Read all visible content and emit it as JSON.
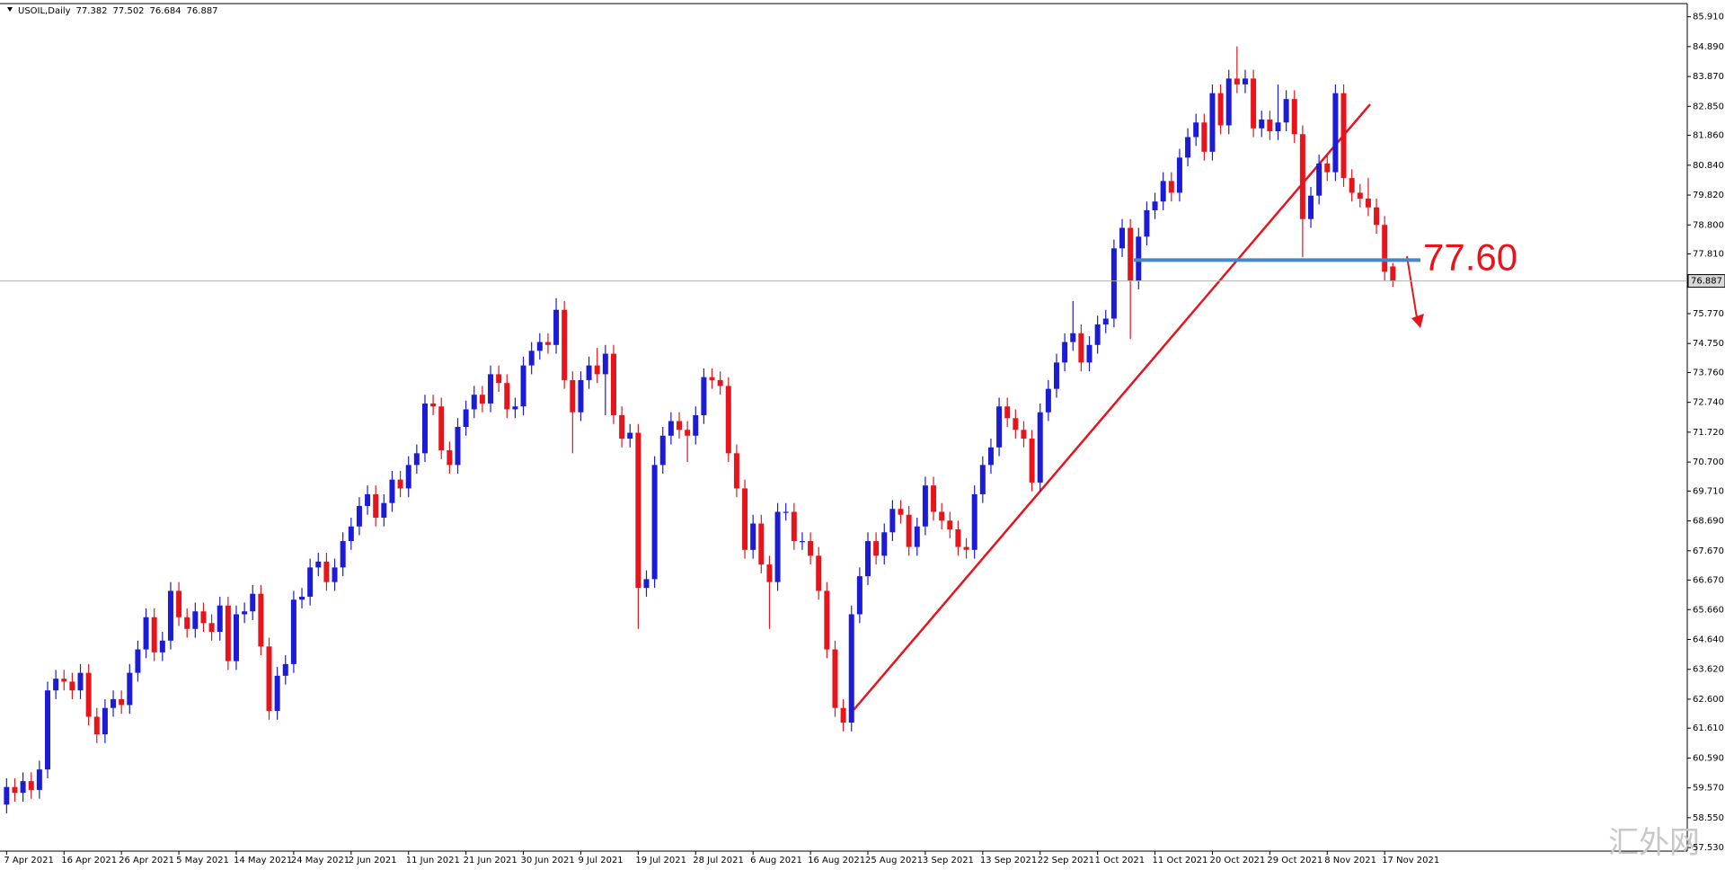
{
  "chart_data": {
    "type": "candlestick",
    "title": "USOIL,Daily",
    "header_values": [
      "77.382",
      "77.502",
      "76.684",
      "76.887"
    ],
    "up_color": "#1c1cd6",
    "down_color": "#e8141c",
    "categories": [
      "7 Apr 2021",
      null,
      null,
      null,
      null,
      null,
      null,
      "16 Apr 2021",
      null,
      null,
      null,
      null,
      null,
      null,
      "26 Apr 2021",
      null,
      null,
      null,
      null,
      null,
      null,
      "5 May 2021",
      null,
      null,
      null,
      null,
      null,
      null,
      "14 May 2021",
      null,
      null,
      null,
      null,
      null,
      null,
      "24 May 2021",
      null,
      null,
      null,
      null,
      null,
      null,
      "2 Jun 2021",
      null,
      null,
      null,
      null,
      null,
      null,
      "11 Jun 2021",
      null,
      null,
      null,
      null,
      null,
      null,
      "21 Jun 2021",
      null,
      null,
      null,
      null,
      null,
      null,
      "30 Jun 2021",
      null,
      null,
      null,
      null,
      null,
      null,
      "9 Jul 2021",
      null,
      null,
      null,
      null,
      null,
      null,
      "19 Jul 2021",
      null,
      null,
      null,
      null,
      null,
      null,
      "28 Jul 2021",
      null,
      null,
      null,
      null,
      null,
      null,
      "6 Aug 2021",
      null,
      null,
      null,
      null,
      null,
      null,
      "16 Aug 2021",
      null,
      null,
      null,
      null,
      null,
      null,
      "25 Aug 2021",
      null,
      null,
      null,
      null,
      null,
      null,
      "3 Sep 2021",
      null,
      null,
      null,
      null,
      null,
      null,
      "13 Sep 2021",
      null,
      null,
      null,
      null,
      null,
      null,
      "22 Sep 2021",
      null,
      null,
      null,
      null,
      null,
      null,
      "1 Oct 2021",
      null,
      null,
      null,
      null,
      null,
      null,
      "11 Oct 2021",
      null,
      null,
      null,
      null,
      null,
      null,
      "20 Oct 2021",
      null,
      null,
      null,
      null,
      null,
      null,
      "29 Oct 2021",
      null,
      null,
      null,
      null,
      null,
      null,
      "8 Nov 2021",
      null,
      null,
      null,
      null,
      null,
      null,
      "17 Nov 2021",
      null
    ],
    "open": [
      59.0,
      59.6,
      59.4,
      59.8,
      59.5,
      60.2,
      62.9,
      63.3,
      63.2,
      62.9,
      63.5,
      62.0,
      61.4,
      62.3,
      62.6,
      62.4,
      63.5,
      64.3,
      65.4,
      64.2,
      64.6,
      66.3,
      65.4,
      65.0,
      65.6,
      65.2,
      64.9,
      65.8,
      63.9,
      65.5,
      65.6,
      66.2,
      64.4,
      62.2,
      63.4,
      63.8,
      66.0,
      66.1,
      67.1,
      67.3,
      66.6,
      67.1,
      68.0,
      68.5,
      69.2,
      69.6,
      68.8,
      69.3,
      70.1,
      69.8,
      70.6,
      71.0,
      72.7,
      72.6,
      71.1,
      70.6,
      71.9,
      72.5,
      73.0,
      72.7,
      73.7,
      73.4,
      72.5,
      72.6,
      74.0,
      74.5,
      74.8,
      74.7,
      75.9,
      73.5,
      72.4,
      73.5,
      74.0,
      73.7,
      74.4,
      72.3,
      71.5,
      71.7,
      66.4,
      66.7,
      70.6,
      71.6,
      72.1,
      71.8,
      71.6,
      72.3,
      73.6,
      73.5,
      73.3,
      71.0,
      69.8,
      67.7,
      68.6,
      67.2,
      66.6,
      69.0,
      69.0,
      68.0,
      68.0,
      67.5,
      66.3,
      64.3,
      62.3,
      61.8,
      65.5,
      66.8,
      68.0,
      67.5,
      68.3,
      69.1,
      68.9,
      67.8,
      68.5,
      69.9,
      69.0,
      68.7,
      68.4,
      67.8,
      67.7,
      69.6,
      70.6,
      71.2,
      72.6,
      72.2,
      71.8,
      71.5,
      70.0,
      72.4,
      73.2,
      74.1,
      74.8,
      75.1,
      74.1,
      74.7,
      75.4,
      75.6,
      78.0,
      78.7,
      76.9,
      78.4,
      79.3,
      79.6,
      80.3,
      79.9,
      81.1,
      81.8,
      82.3,
      81.3,
      83.3,
      82.2,
      83.8,
      83.6,
      83.8,
      82.1,
      82.4,
      82.0,
      82.3,
      83.1,
      81.9,
      79.0,
      79.8,
      80.9,
      80.6,
      83.3,
      80.4,
      79.9,
      79.7,
      79.4,
      78.8,
      77.382
    ],
    "high": [
      59.9,
      59.9,
      60.1,
      60.1,
      60.5,
      63.2,
      63.6,
      63.6,
      63.5,
      63.8,
      63.8,
      62.3,
      62.6,
      62.9,
      62.9,
      63.8,
      64.6,
      65.7,
      65.7,
      64.9,
      66.6,
      66.6,
      65.7,
      65.9,
      65.9,
      65.5,
      66.1,
      66.1,
      65.8,
      65.9,
      66.5,
      66.5,
      64.7,
      63.7,
      64.1,
      66.3,
      66.4,
      67.4,
      67.6,
      67.6,
      67.4,
      68.3,
      68.8,
      69.5,
      69.9,
      69.9,
      69.6,
      70.4,
      70.4,
      70.9,
      71.3,
      73.0,
      73.0,
      72.9,
      71.4,
      72.2,
      72.8,
      73.3,
      73.3,
      74.0,
      74.0,
      73.7,
      72.9,
      74.3,
      74.8,
      75.1,
      75.1,
      76.3,
      76.2,
      73.8,
      73.8,
      74.3,
      74.6,
      74.7,
      74.7,
      72.6,
      72.0,
      72.0,
      67.0,
      70.9,
      71.9,
      72.4,
      72.4,
      72.1,
      72.6,
      73.9,
      73.9,
      73.8,
      73.6,
      71.3,
      70.1,
      68.9,
      68.9,
      67.5,
      69.3,
      69.3,
      69.3,
      68.3,
      68.3,
      67.8,
      66.6,
      64.6,
      62.6,
      65.8,
      67.1,
      68.3,
      68.3,
      68.6,
      69.4,
      69.4,
      69.2,
      68.8,
      70.2,
      70.2,
      69.3,
      69.0,
      68.7,
      68.1,
      69.9,
      70.9,
      71.5,
      72.9,
      72.9,
      72.5,
      72.1,
      71.8,
      72.7,
      73.5,
      74.4,
      75.1,
      76.2,
      75.4,
      75.0,
      75.7,
      75.9,
      78.3,
      79.0,
      79.0,
      78.7,
      79.6,
      79.9,
      80.6,
      80.6,
      81.4,
      82.1,
      82.6,
      82.6,
      83.6,
      83.6,
      84.1,
      84.9,
      84.1,
      84.1,
      82.7,
      82.7,
      83.6,
      83.4,
      83.4,
      82.2,
      80.1,
      81.2,
      81.2,
      83.6,
      83.6,
      80.7,
      80.2,
      80.4,
      79.7,
      79.1,
      77.502
    ],
    "low": [
      58.7,
      59.1,
      59.1,
      59.2,
      59.2,
      59.9,
      62.6,
      62.9,
      62.6,
      62.6,
      61.7,
      61.1,
      61.1,
      62.0,
      62.1,
      62.1,
      63.2,
      64.0,
      63.9,
      63.9,
      64.3,
      65.1,
      64.7,
      64.7,
      64.9,
      64.6,
      64.6,
      63.6,
      63.6,
      65.2,
      65.3,
      64.1,
      61.9,
      61.9,
      63.1,
      63.5,
      65.7,
      65.8,
      66.8,
      66.3,
      66.3,
      66.8,
      67.7,
      68.2,
      68.9,
      68.5,
      68.5,
      69.0,
      69.5,
      69.5,
      70.3,
      70.7,
      72.3,
      70.8,
      70.3,
      70.3,
      71.6,
      72.2,
      72.4,
      72.4,
      73.1,
      72.2,
      72.2,
      72.3,
      73.7,
      74.2,
      74.4,
      74.4,
      73.2,
      71.0,
      72.1,
      73.2,
      73.4,
      72.3,
      72.0,
      71.2,
      71.2,
      65.0,
      66.1,
      66.4,
      70.3,
      71.3,
      71.5,
      70.7,
      71.3,
      72.0,
      73.2,
      73.0,
      70.7,
      69.5,
      67.4,
      67.4,
      66.9,
      65.0,
      66.3,
      68.7,
      67.7,
      67.7,
      67.2,
      66.0,
      64.0,
      62.0,
      61.5,
      61.5,
      65.2,
      66.5,
      67.2,
      67.2,
      68.0,
      68.6,
      67.5,
      67.5,
      68.2,
      68.7,
      68.4,
      68.1,
      67.5,
      67.4,
      67.4,
      69.3,
      70.3,
      70.9,
      71.9,
      71.5,
      71.2,
      69.7,
      69.7,
      72.1,
      72.9,
      73.8,
      74.5,
      73.8,
      73.8,
      74.4,
      75.1,
      75.3,
      77.7,
      74.9,
      76.6,
      78.1,
      79.0,
      79.3,
      79.6,
      79.6,
      80.8,
      81.5,
      81.0,
      81.0,
      81.9,
      81.9,
      83.3,
      83.3,
      81.8,
      81.8,
      81.7,
      81.7,
      82.0,
      81.6,
      77.7,
      78.7,
      79.5,
      80.3,
      80.3,
      80.1,
      79.6,
      79.4,
      79.1,
      78.5,
      76.9,
      76.684
    ],
    "close": [
      59.6,
      59.4,
      59.8,
      59.5,
      60.2,
      62.9,
      63.3,
      63.2,
      62.9,
      63.5,
      62.0,
      61.4,
      62.3,
      62.6,
      62.4,
      63.5,
      64.3,
      65.4,
      64.2,
      64.6,
      66.3,
      65.4,
      65.0,
      65.6,
      65.2,
      64.9,
      65.8,
      63.9,
      65.5,
      65.6,
      66.2,
      64.4,
      62.2,
      63.4,
      63.8,
      66.0,
      66.1,
      67.1,
      67.3,
      66.6,
      67.1,
      68.0,
      68.5,
      69.2,
      69.6,
      68.8,
      69.3,
      70.1,
      69.8,
      70.6,
      71.0,
      72.7,
      72.6,
      71.1,
      70.6,
      71.9,
      72.5,
      73.0,
      72.7,
      73.7,
      73.4,
      72.5,
      72.6,
      74.0,
      74.5,
      74.8,
      74.7,
      75.9,
      73.5,
      72.4,
      73.5,
      74.0,
      73.7,
      74.4,
      72.3,
      71.5,
      71.7,
      66.4,
      66.7,
      70.6,
      71.6,
      72.1,
      71.8,
      71.6,
      72.3,
      73.6,
      73.5,
      73.3,
      71.0,
      69.8,
      67.7,
      68.6,
      67.2,
      66.6,
      69.0,
      69.0,
      68.0,
      68.0,
      67.5,
      66.3,
      64.3,
      62.3,
      61.8,
      65.5,
      66.8,
      68.0,
      67.5,
      68.3,
      69.1,
      68.9,
      67.8,
      68.5,
      69.9,
      69.0,
      68.7,
      68.4,
      67.8,
      67.7,
      69.6,
      70.6,
      71.2,
      72.6,
      72.2,
      71.8,
      71.5,
      70.0,
      72.4,
      73.2,
      74.1,
      74.8,
      75.1,
      74.1,
      74.7,
      75.4,
      75.6,
      78.0,
      78.7,
      76.9,
      78.4,
      79.3,
      79.6,
      80.3,
      79.9,
      81.1,
      81.8,
      82.3,
      81.3,
      83.3,
      82.2,
      83.8,
      83.6,
      83.8,
      82.1,
      82.4,
      82.0,
      82.3,
      83.1,
      81.9,
      79.0,
      79.8,
      80.9,
      80.6,
      83.3,
      80.4,
      79.9,
      79.7,
      79.4,
      78.8,
      77.2,
      76.887
    ],
    "ylim": [
      57.41,
      86.36
    ],
    "yticks": [
      {
        "value": 85.91,
        "label": "85.910"
      },
      {
        "value": 84.89,
        "label": "84.890"
      },
      {
        "value": 83.87,
        "label": "83.870"
      },
      {
        "value": 82.85,
        "label": "82.850"
      },
      {
        "value": 81.86,
        "label": "81.860"
      },
      {
        "value": 80.84,
        "label": "80.840"
      },
      {
        "value": 79.82,
        "label": "79.820"
      },
      {
        "value": 78.8,
        "label": "78.800"
      },
      {
        "value": 77.81,
        "label": "77.810"
      },
      {
        "value": 75.77,
        "label": "75.770"
      },
      {
        "value": 74.75,
        "label": "74.750"
      },
      {
        "value": 73.76,
        "label": "73.760"
      },
      {
        "value": 72.74,
        "label": "72.740"
      },
      {
        "value": 71.72,
        "label": "71.720"
      },
      {
        "value": 70.7,
        "label": "70.700"
      },
      {
        "value": 69.71,
        "label": "69.710"
      },
      {
        "value": 68.69,
        "label": "68.690"
      },
      {
        "value": 67.67,
        "label": "67.670"
      },
      {
        "value": 66.67,
        "label": "66.670"
      },
      {
        "value": 65.66,
        "label": "65.660"
      },
      {
        "value": 64.64,
        "label": "64.640"
      },
      {
        "value": 63.62,
        "label": "63.620"
      },
      {
        "value": 62.6,
        "label": "62.600"
      },
      {
        "value": 61.61,
        "label": "61.610"
      },
      {
        "value": 60.59,
        "label": "60.590"
      },
      {
        "value": 59.57,
        "label": "59.570"
      },
      {
        "value": 58.55,
        "label": "58.550"
      },
      {
        "value": 57.53,
        "label": "57.530"
      }
    ],
    "level": {
      "value": 77.6,
      "label": "77.60",
      "color": "#4a86c5"
    },
    "watermark": "汇外网"
  }
}
